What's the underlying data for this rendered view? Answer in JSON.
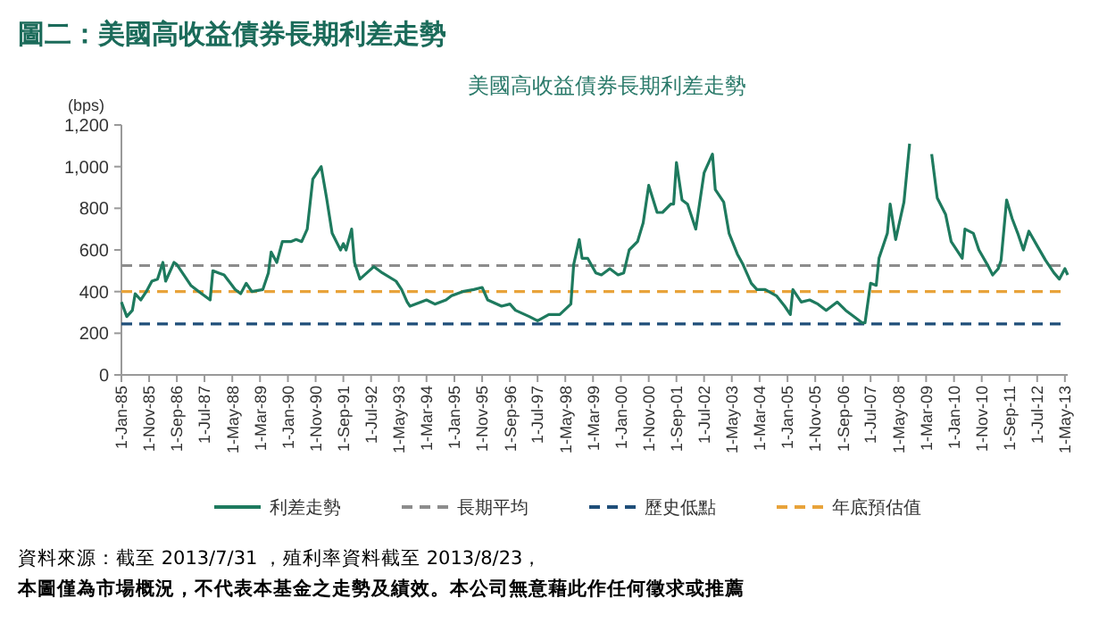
{
  "chart_data": {
    "type": "line",
    "title": "圖二：美國高收益債券長期利差走勢",
    "subtitle": "美國高收益債券長期利差走勢",
    "ylabel": "(bps)",
    "annotations": [
      "資料來源：截至 2013/7/31 ，殖利率資料截至 2013/8/23，",
      "本圖僅為市場概況，不代表本基金之走勢及績效。本公司無意藉此作任何徵求或推薦"
    ],
    "xlim": [
      "1985-01",
      "2013-06"
    ],
    "xticks": [
      {
        "value": "1985-01",
        "label": "1-Jan-85"
      },
      {
        "value": "1985-11",
        "label": "1-Nov-85"
      },
      {
        "value": "1986-09",
        "label": "1-Sep-86"
      },
      {
        "value": "1987-07",
        "label": "1-Jul-87"
      },
      {
        "value": "1988-05",
        "label": "1-May-88"
      },
      {
        "value": "1989-03",
        "label": "1-Mar-89"
      },
      {
        "value": "1990-01",
        "label": "1-Jan-90"
      },
      {
        "value": "1990-11",
        "label": "1-Nov-90"
      },
      {
        "value": "1991-09",
        "label": "1-Sep-91"
      },
      {
        "value": "1992-07",
        "label": "1-Jul-92"
      },
      {
        "value": "1993-05",
        "label": "1-May-93"
      },
      {
        "value": "1994-03",
        "label": "1-Mar-94"
      },
      {
        "value": "1995-01",
        "label": "1-Jan-95"
      },
      {
        "value": "1995-11",
        "label": "1-Nov-95"
      },
      {
        "value": "1996-09",
        "label": "1-Sep-96"
      },
      {
        "value": "1997-07",
        "label": "1-Jul-97"
      },
      {
        "value": "1998-05",
        "label": "1-May-98"
      },
      {
        "value": "1999-03",
        "label": "1-Mar-99"
      },
      {
        "value": "2000-01",
        "label": "1-Jan-00"
      },
      {
        "value": "2000-11",
        "label": "1-Nov-00"
      },
      {
        "value": "2001-09",
        "label": "1-Sep-01"
      },
      {
        "value": "2002-07",
        "label": "1-Jul-02"
      },
      {
        "value": "2003-05",
        "label": "1-May-03"
      },
      {
        "value": "2004-03",
        "label": "1-Mar-04"
      },
      {
        "value": "2005-01",
        "label": "1-Jan-05"
      },
      {
        "value": "2005-11",
        "label": "1-Nov-05"
      },
      {
        "value": "2006-09",
        "label": "1-Sep-06"
      },
      {
        "value": "2007-07",
        "label": "1-Jul-07"
      },
      {
        "value": "2008-05",
        "label": "1-May-08"
      },
      {
        "value": "2009-03",
        "label": "1-Mar-09"
      },
      {
        "value": "2010-01",
        "label": "1-Jan-10"
      },
      {
        "value": "2010-11",
        "label": "1-Nov-10"
      },
      {
        "value": "2011-09",
        "label": "1-Sep-11"
      },
      {
        "value": "2012-07",
        "label": "1-Jul-12"
      },
      {
        "value": "2013-05",
        "label": "1-May-13"
      }
    ],
    "ylim": [
      0,
      1200
    ],
    "yticks": [
      0,
      200,
      400,
      600,
      800,
      {
        "value": 1000,
        "label": "1,000"
      },
      {
        "value": 1200,
        "label": "1,200"
      }
    ],
    "grid": false,
    "legend": "bottom",
    "line_style": "solid",
    "marker": "none",
    "x": [
      "1985-01",
      "1985-03",
      "1985-05",
      "1985-06",
      "1985-08",
      "1985-10",
      "1985-12",
      "1986-02",
      "1986-04",
      "1986-05",
      "1986-08",
      "1986-09",
      "1986-11",
      "1987-02",
      "1987-05",
      "1987-09",
      "1987-10",
      "1987-12",
      "1988-02",
      "1988-06",
      "1988-08",
      "1988-10",
      "1988-12",
      "1989-04",
      "1989-06",
      "1989-07",
      "1989-09",
      "1989-11",
      "1990-02",
      "1990-04",
      "1990-06",
      "1990-08",
      "1990-10",
      "1991-01",
      "1991-03",
      "1991-05",
      "1991-08",
      "1991-09",
      "1991-10",
      "1991-12",
      "1992-01",
      "1992-03",
      "1992-08",
      "1992-11",
      "1993-04",
      "1993-06",
      "1993-08",
      "1993-09",
      "1994-03",
      "1994-06",
      "1994-10",
      "1994-12",
      "1995-04",
      "1995-08",
      "1995-11",
      "1996-01",
      "1996-06",
      "1996-09",
      "1996-11",
      "1997-04",
      "1997-07",
      "1997-11",
      "1998-03",
      "1998-07",
      "1998-08",
      "1998-10",
      "1998-11",
      "1999-01",
      "1999-04",
      "1999-06",
      "1999-09",
      "1999-12",
      "2000-02",
      "2000-04",
      "2000-07",
      "2000-09",
      "2000-11",
      "2001-02",
      "2001-04",
      "2001-07",
      "2001-08",
      "2001-09",
      "2001-11",
      "2002-01",
      "2002-04",
      "2002-07",
      "2002-10",
      "2002-11",
      "2003-02",
      "2003-04",
      "2003-07",
      "2003-09",
      "2003-12",
      "2004-02",
      "2004-05",
      "2004-09",
      "2004-12",
      "2005-02",
      "2005-03",
      "2005-06",
      "2005-09",
      "2005-12",
      "2006-03",
      "2006-07",
      "2006-10",
      "2007-01",
      "2007-04",
      "2007-05",
      "2007-07",
      "2007-09",
      "2007-10",
      "2008-01",
      "2008-02",
      "2008-04",
      "2008-07",
      "2008-09",
      "2009-01",
      "2009-05",
      "2009-07",
      "2009-10",
      "2009-12",
      "2010-04",
      "2010-05",
      "2010-08",
      "2010-10",
      "2011-01",
      "2011-03",
      "2011-05",
      "2011-06",
      "2011-08",
      "2011-10",
      "2011-12",
      "2012-02",
      "2012-04",
      "2012-07",
      "2012-10",
      "2013-01",
      "2013-03",
      "2013-05",
      "2013-06"
    ],
    "series": [
      {
        "name": "利差走勢",
        "color": "#1e7a5e",
        "values": [
          350,
          280,
          310,
          390,
          360,
          400,
          450,
          460,
          540,
          450,
          540,
          530,
          490,
          430,
          400,
          360,
          500,
          490,
          480,
          410,
          390,
          440,
          400,
          410,
          490,
          590,
          540,
          640,
          640,
          650,
          640,
          700,
          940,
          1000,
          850,
          680,
          600,
          630,
          600,
          700,
          540,
          460,
          520,
          490,
          450,
          410,
          350,
          330,
          360,
          340,
          360,
          380,
          400,
          410,
          420,
          360,
          330,
          340,
          310,
          280,
          260,
          290,
          290,
          340,
          530,
          650,
          560,
          560,
          490,
          480,
          510,
          480,
          490,
          600,
          640,
          730,
          910,
          780,
          780,
          820,
          820,
          1020,
          840,
          820,
          700,
          970,
          1060,
          890,
          830,
          680,
          580,
          530,
          440,
          410,
          410,
          380,
          330,
          290,
          410,
          350,
          360,
          340,
          310,
          350,
          310,
          280,
          250,
          250,
          440,
          430,
          560,
          680,
          820,
          650,
          830,
          1110,
          null,
          1060,
          850,
          770,
          640,
          560,
          700,
          680,
          600,
          530,
          480,
          510,
          550,
          840,
          750,
          680,
          600,
          690,
          620,
          550,
          490,
          460,
          510,
          480
        ]
      }
    ],
    "ref_lines": [
      {
        "axis": "y",
        "value": 525,
        "label": "長期平均",
        "color": "#8c8c8c",
        "line_style": "dashed"
      },
      {
        "axis": "y",
        "value": 245,
        "label": "歷史低點",
        "color": "#1f4e79",
        "line_style": "dashed"
      },
      {
        "axis": "y",
        "value": 400,
        "label": "年底預估值",
        "color": "#e8a33a",
        "line_style": "dashed"
      }
    ]
  }
}
